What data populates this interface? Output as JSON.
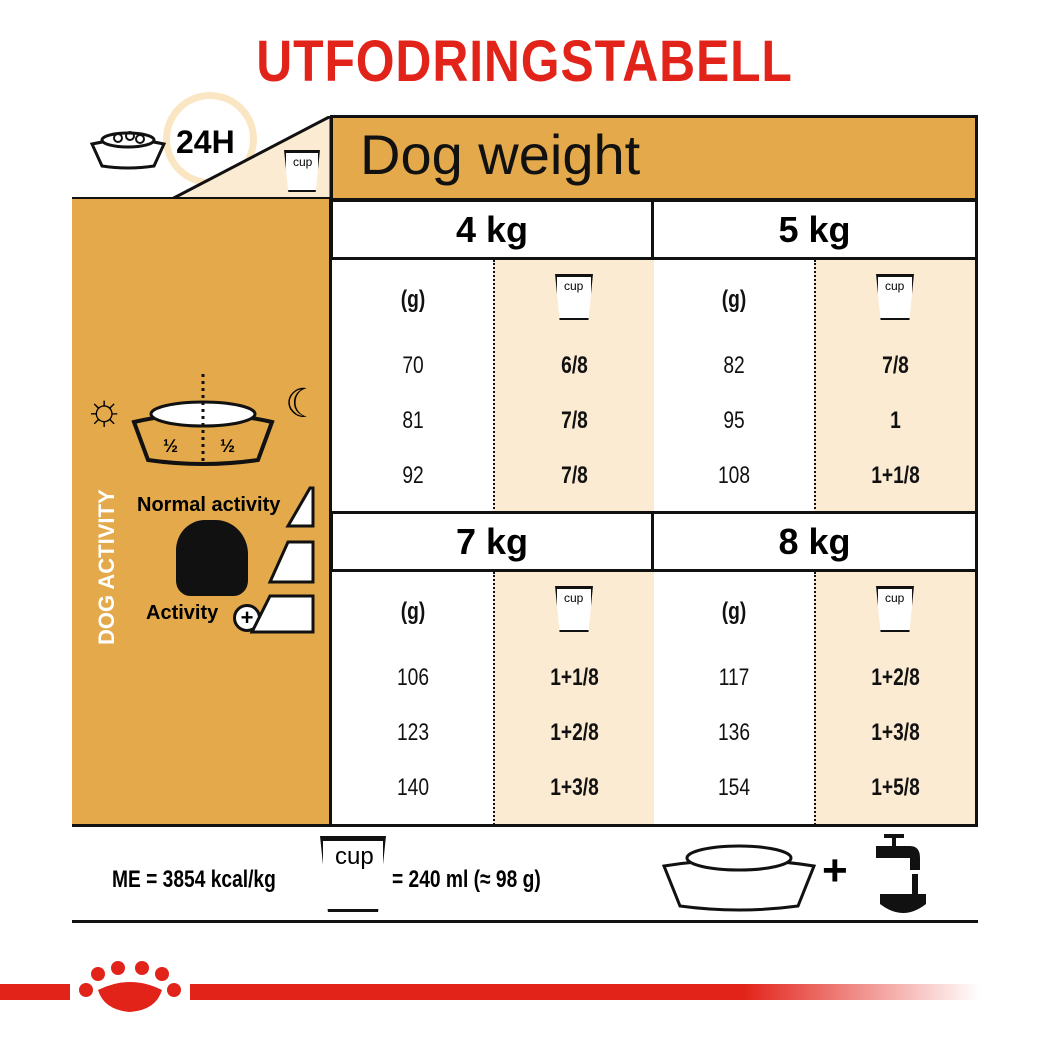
{
  "title": "UTFODRINGSTABELL",
  "header": {
    "period": "24H",
    "cup_label": "cup",
    "weight_title": "Dog weight"
  },
  "side": {
    "vertical_label": "DOG ACTIVITY",
    "half_left": "½",
    "half_right": "½",
    "normal_activity": "Normal activity",
    "activity_plus": "Activity"
  },
  "columns": {
    "grams": "(g)",
    "cup": "cup"
  },
  "blocks": [
    {
      "weight": "4 kg",
      "rows": [
        {
          "g": "70",
          "cup": "6/8"
        },
        {
          "g": "81",
          "cup": "7/8"
        },
        {
          "g": "92",
          "cup": "7/8"
        }
      ]
    },
    {
      "weight": "5 kg",
      "rows": [
        {
          "g": "82",
          "cup": "7/8"
        },
        {
          "g": "95",
          "cup": "1"
        },
        {
          "g": "108",
          "cup": "1+1/8"
        }
      ]
    },
    {
      "weight": "7 kg",
      "rows": [
        {
          "g": "106",
          "cup": "1+1/8"
        },
        {
          "g": "123",
          "cup": "1+2/8"
        },
        {
          "g": "140",
          "cup": "1+3/8"
        }
      ]
    },
    {
      "weight": "8 kg",
      "rows": [
        {
          "g": "117",
          "cup": "1+2/8"
        },
        {
          "g": "136",
          "cup": "1+3/8"
        },
        {
          "g": "154",
          "cup": "1+5/8"
        }
      ]
    }
  ],
  "footer": {
    "me": "ME = 3854 kcal/kg",
    "cup_label": "cup",
    "cup_equiv": "= 240 ml (≈ 98 g)",
    "plus": "+"
  },
  "colors": {
    "accent": "#e3a94a",
    "cream": "#fcebd3",
    "brand_red": "#e2231a"
  }
}
